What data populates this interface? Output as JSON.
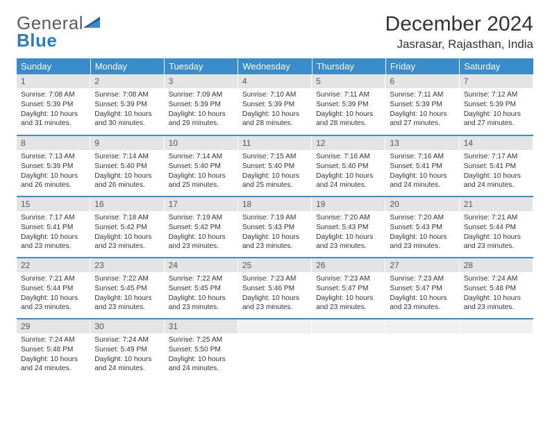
{
  "logo": {
    "line1": "General",
    "line2": "Blue"
  },
  "header": {
    "monthTitle": "December 2024",
    "location": "Jasrasar, Rajasthan, India"
  },
  "colors": {
    "headerBg": "#3a8bc9",
    "headerText": "#ffffff",
    "dayNumBg": "#e4e4e4",
    "rowDivider": "#3a8bc9"
  },
  "dayHeaders": [
    "Sunday",
    "Monday",
    "Tuesday",
    "Wednesday",
    "Thursday",
    "Friday",
    "Saturday"
  ],
  "weeks": [
    [
      {
        "d": "1",
        "sr": "7:08 AM",
        "ss": "5:39 PM",
        "dl": "10 hours and 31 minutes."
      },
      {
        "d": "2",
        "sr": "7:08 AM",
        "ss": "5:39 PM",
        "dl": "10 hours and 30 minutes."
      },
      {
        "d": "3",
        "sr": "7:09 AM",
        "ss": "5:39 PM",
        "dl": "10 hours and 29 minutes."
      },
      {
        "d": "4",
        "sr": "7:10 AM",
        "ss": "5:39 PM",
        "dl": "10 hours and 28 minutes."
      },
      {
        "d": "5",
        "sr": "7:11 AM",
        "ss": "5:39 PM",
        "dl": "10 hours and 28 minutes."
      },
      {
        "d": "6",
        "sr": "7:11 AM",
        "ss": "5:39 PM",
        "dl": "10 hours and 27 minutes."
      },
      {
        "d": "7",
        "sr": "7:12 AM",
        "ss": "5:39 PM",
        "dl": "10 hours and 27 minutes."
      }
    ],
    [
      {
        "d": "8",
        "sr": "7:13 AM",
        "ss": "5:39 PM",
        "dl": "10 hours and 26 minutes."
      },
      {
        "d": "9",
        "sr": "7:14 AM",
        "ss": "5:40 PM",
        "dl": "10 hours and 26 minutes."
      },
      {
        "d": "10",
        "sr": "7:14 AM",
        "ss": "5:40 PM",
        "dl": "10 hours and 25 minutes."
      },
      {
        "d": "11",
        "sr": "7:15 AM",
        "ss": "5:40 PM",
        "dl": "10 hours and 25 minutes."
      },
      {
        "d": "12",
        "sr": "7:16 AM",
        "ss": "5:40 PM",
        "dl": "10 hours and 24 minutes."
      },
      {
        "d": "13",
        "sr": "7:16 AM",
        "ss": "5:41 PM",
        "dl": "10 hours and 24 minutes."
      },
      {
        "d": "14",
        "sr": "7:17 AM",
        "ss": "5:41 PM",
        "dl": "10 hours and 24 minutes."
      }
    ],
    [
      {
        "d": "15",
        "sr": "7:17 AM",
        "ss": "5:41 PM",
        "dl": "10 hours and 23 minutes."
      },
      {
        "d": "16",
        "sr": "7:18 AM",
        "ss": "5:42 PM",
        "dl": "10 hours and 23 minutes."
      },
      {
        "d": "17",
        "sr": "7:19 AM",
        "ss": "5:42 PM",
        "dl": "10 hours and 23 minutes."
      },
      {
        "d": "18",
        "sr": "7:19 AM",
        "ss": "5:43 PM",
        "dl": "10 hours and 23 minutes."
      },
      {
        "d": "19",
        "sr": "7:20 AM",
        "ss": "5:43 PM",
        "dl": "10 hours and 23 minutes."
      },
      {
        "d": "20",
        "sr": "7:20 AM",
        "ss": "5:43 PM",
        "dl": "10 hours and 23 minutes."
      },
      {
        "d": "21",
        "sr": "7:21 AM",
        "ss": "5:44 PM",
        "dl": "10 hours and 23 minutes."
      }
    ],
    [
      {
        "d": "22",
        "sr": "7:21 AM",
        "ss": "5:44 PM",
        "dl": "10 hours and 23 minutes."
      },
      {
        "d": "23",
        "sr": "7:22 AM",
        "ss": "5:45 PM",
        "dl": "10 hours and 23 minutes."
      },
      {
        "d": "24",
        "sr": "7:22 AM",
        "ss": "5:45 PM",
        "dl": "10 hours and 23 minutes."
      },
      {
        "d": "25",
        "sr": "7:23 AM",
        "ss": "5:46 PM",
        "dl": "10 hours and 23 minutes."
      },
      {
        "d": "26",
        "sr": "7:23 AM",
        "ss": "5:47 PM",
        "dl": "10 hours and 23 minutes."
      },
      {
        "d": "27",
        "sr": "7:23 AM",
        "ss": "5:47 PM",
        "dl": "10 hours and 23 minutes."
      },
      {
        "d": "28",
        "sr": "7:24 AM",
        "ss": "5:48 PM",
        "dl": "10 hours and 23 minutes."
      }
    ],
    [
      {
        "d": "29",
        "sr": "7:24 AM",
        "ss": "5:48 PM",
        "dl": "10 hours and 24 minutes."
      },
      {
        "d": "30",
        "sr": "7:24 AM",
        "ss": "5:49 PM",
        "dl": "10 hours and 24 minutes."
      },
      {
        "d": "31",
        "sr": "7:25 AM",
        "ss": "5:50 PM",
        "dl": "10 hours and 24 minutes."
      },
      null,
      null,
      null,
      null
    ]
  ],
  "labels": {
    "sunrise": "Sunrise: ",
    "sunset": "Sunset: ",
    "daylight": "Daylight: "
  }
}
